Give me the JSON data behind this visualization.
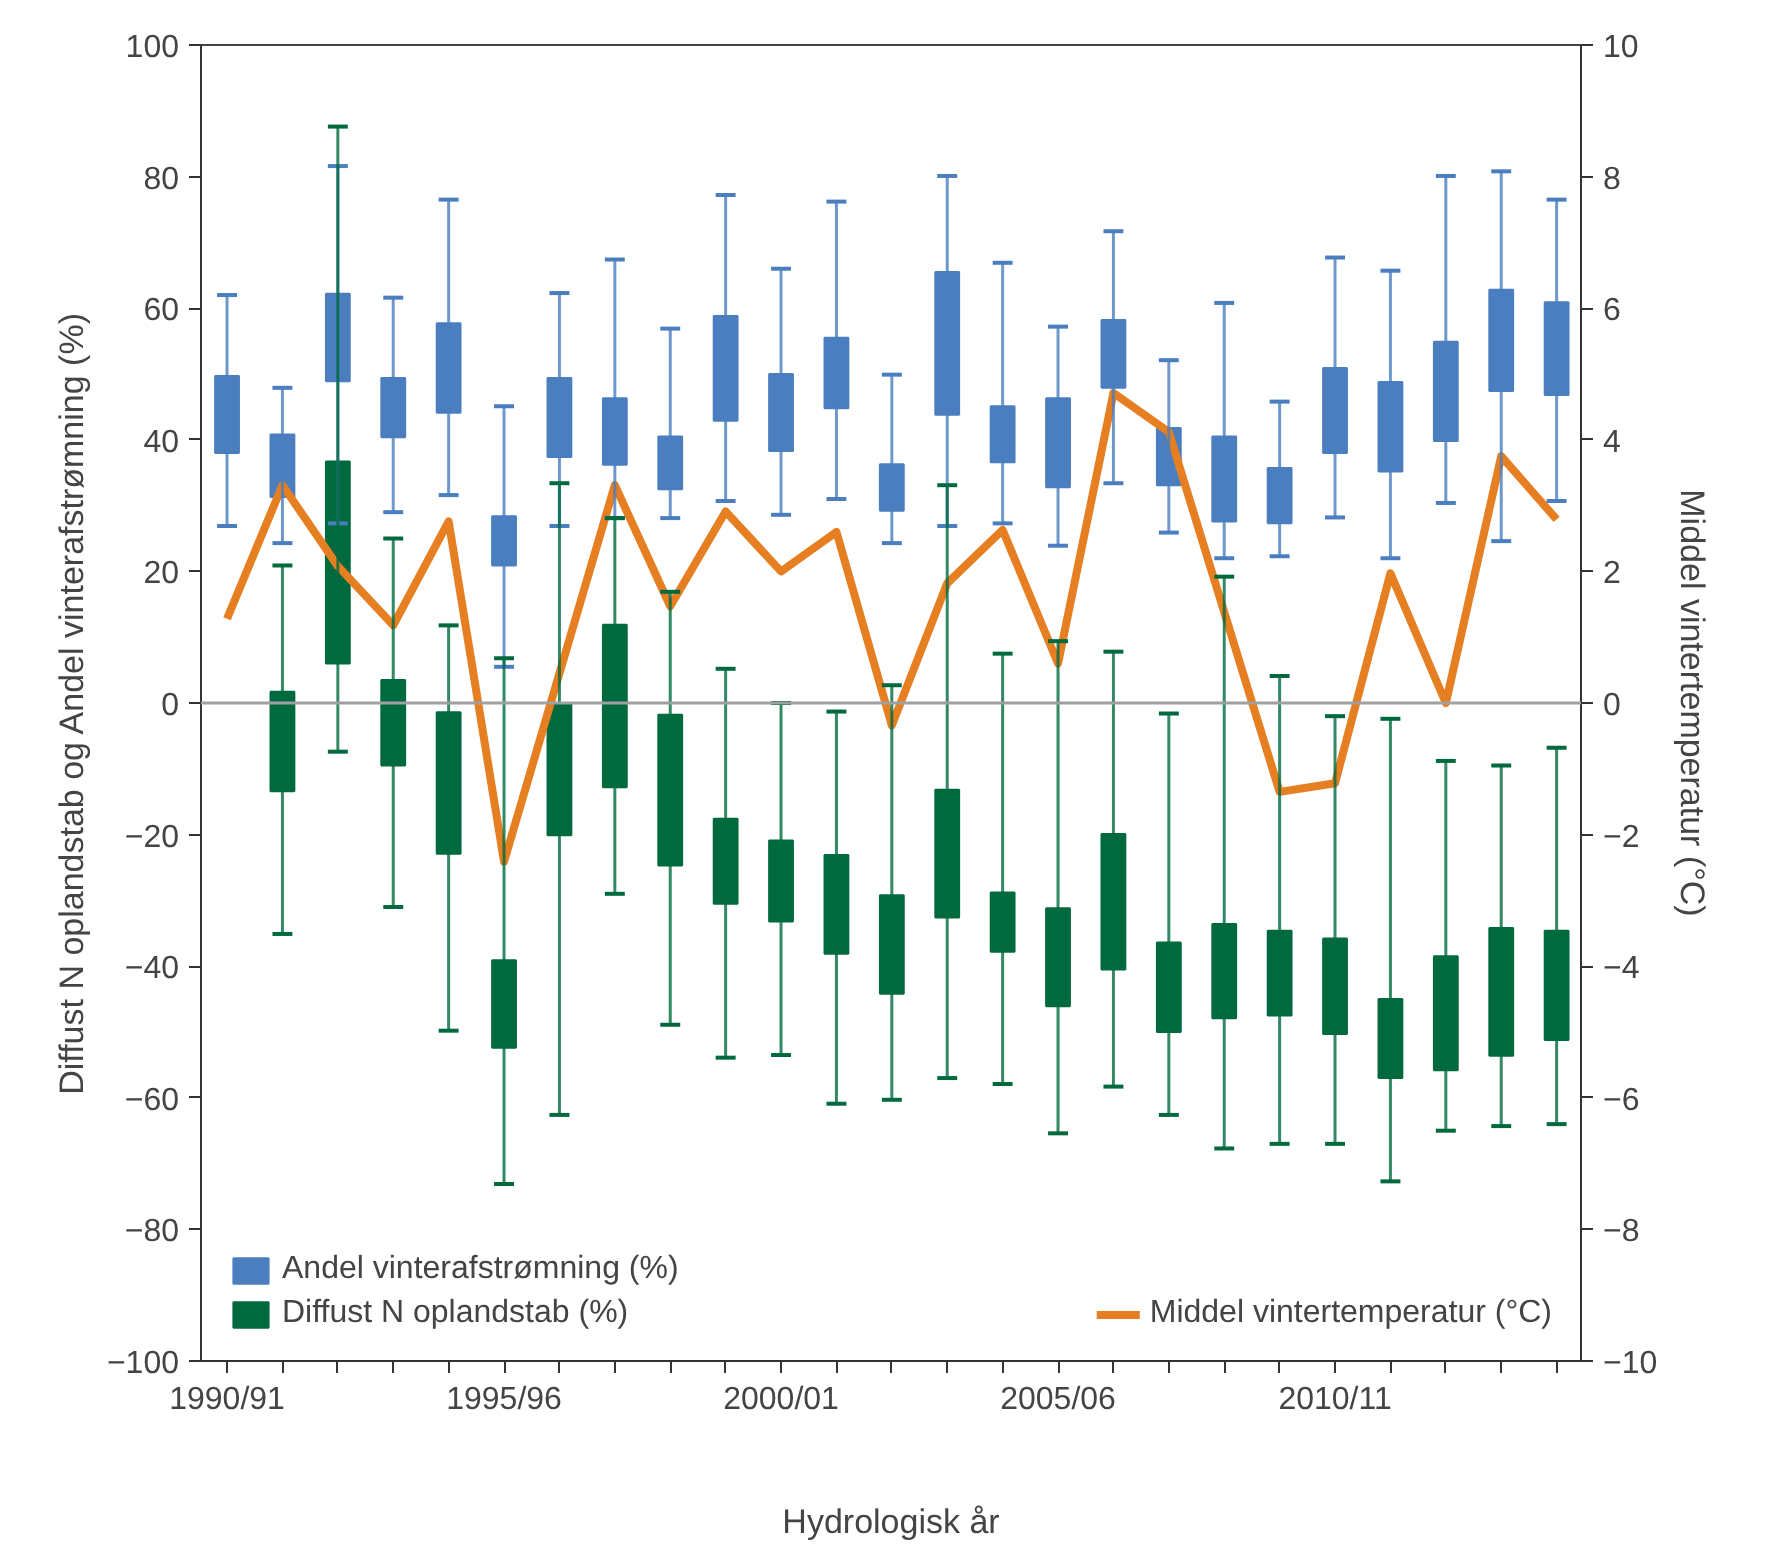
{
  "chart_data": {
    "type": "bar",
    "xlabel": "Hydrologisk år",
    "ylabel": "Diffust N oplandstab og Andel vinterafstrømning (%)",
    "y2label": "Middel vintertemperatur (°C)",
    "categories": [
      "1990/91",
      null,
      null,
      null,
      null,
      "1995/96",
      null,
      null,
      null,
      null,
      "2000/01",
      null,
      null,
      null,
      null,
      "2005/06",
      null,
      null,
      null,
      null,
      "2010/11",
      null,
      null,
      null,
      null
    ],
    "ylim": [
      -100,
      100
    ],
    "yticks": [
      -100,
      -80,
      -60,
      -40,
      -20,
      0,
      20,
      40,
      60,
      80,
      100
    ],
    "y2lim": [
      -10,
      10
    ],
    "y2ticks": [
      -10,
      -8,
      -6,
      -4,
      -2,
      0,
      2,
      4,
      6,
      8,
      10
    ],
    "grid": false,
    "legend": "bottom",
    "ref_lines": [
      {
        "axis": "y",
        "value": 0,
        "color": "#a0a0a0"
      }
    ],
    "series": [
      {
        "name": "Andel vinterafstrømning (%)",
        "color": "#4a7ebf",
        "base": [
          38.0,
          31.3,
          48.9,
          40.4,
          44.1,
          20.9,
          37.4,
          36.2,
          32.5,
          42.9,
          38.3,
          44.8,
          29.2,
          43.8,
          36.6,
          32.8,
          47.9,
          33.1,
          27.6,
          27.3,
          38.0,
          35.2,
          39.8,
          47.4,
          46.8
        ],
        "values": [
          11.7,
          9.5,
          13.3,
          9.0,
          13.6,
          7.5,
          12.0,
          10.1,
          8.0,
          15.9,
          11.7,
          10.7,
          7.1,
          21.7,
          8.5,
          13.5,
          10.3,
          8.7,
          12.9,
          8.4,
          12.9,
          13.6,
          15.1,
          15.4,
          14.1
        ],
        "errors": [
          [
            26.9,
            62.0
          ],
          [
            24.3,
            47.9
          ],
          [
            27.3,
            81.6
          ],
          [
            29.0,
            61.6
          ],
          [
            31.6,
            76.5
          ],
          [
            5.5,
            45.1
          ],
          [
            26.9,
            62.3
          ],
          [
            28.1,
            67.4
          ],
          [
            28.1,
            56.9
          ],
          [
            30.7,
            77.2
          ],
          [
            28.6,
            66.0
          ],
          [
            31.0,
            76.2
          ],
          [
            24.3,
            49.9
          ],
          [
            26.9,
            80.1
          ],
          [
            27.3,
            66.9
          ],
          [
            23.9,
            57.2
          ],
          [
            33.4,
            71.7
          ],
          [
            25.9,
            52.1
          ],
          [
            22.0,
            60.8
          ],
          [
            22.3,
            45.8
          ],
          [
            28.2,
            67.7
          ],
          [
            22.0,
            65.7
          ],
          [
            30.4,
            80.1
          ],
          [
            24.6,
            80.8
          ],
          [
            30.7,
            76.5
          ]
        ]
      },
      {
        "name": "Diffust N oplandstab (%)",
        "color": "#006a3e",
        "base": [
          null,
          -13.4,
          6.0,
          -9.5,
          -22.9,
          -52.4,
          -20.1,
          -12.8,
          -24.7,
          -30.5,
          -33.2,
          -38.1,
          -44.2,
          -32.6,
          -37.8,
          -46.1,
          -40.5,
          -50.0,
          -47.9,
          -47.5,
          -50.3,
          -57.0,
          -55.8,
          -53.6,
          -51.2
        ],
        "values": [
          null,
          15.1,
          30.7,
          13.0,
          21.5,
          13.3,
          20.1,
          24.7,
          22.9,
          12.9,
          12.3,
          15.0,
          15.0,
          19.4,
          9.0,
          14.9,
          20.6,
          13.6,
          14.3,
          12.9,
          14.5,
          12.0,
          17.3,
          19.4,
          16.6
        ],
        "errors": [
          null,
          [
            -35.1,
            20.9
          ],
          [
            -7.4,
            87.6
          ],
          [
            -31.0,
            25.0
          ],
          [
            -49.8,
            11.8
          ],
          [
            -73.1,
            6.8
          ],
          [
            -62.6,
            33.4
          ],
          [
            -29.0,
            28.1
          ],
          [
            -48.9,
            16.9
          ],
          [
            -53.9,
            5.2
          ],
          [
            -53.5,
            0
          ],
          [
            -60.9,
            -1.3
          ],
          [
            -60.3,
            2.7
          ],
          [
            -57.0,
            33.1
          ],
          [
            -57.9,
            7.5
          ],
          [
            -65.4,
            9.4
          ],
          [
            -58.3,
            7.8
          ],
          [
            -62.6,
            -1.6
          ],
          [
            -67.7,
            19.2
          ],
          [
            -67.0,
            4.1
          ],
          [
            -67.0,
            -2.0
          ],
          [
            -72.7,
            -2.4
          ],
          [
            -65.0,
            -8.8
          ],
          [
            -64.3,
            -9.5
          ],
          [
            -64.0,
            -6.8
          ]
        ]
      },
      {
        "name": "Middel vintertemperatur (°C)",
        "type": "line",
        "axis": "y2",
        "color": "#e67e22",
        "values": [
          1.28,
          3.31,
          2.08,
          1.18,
          2.76,
          -2.41,
          0.45,
          3.31,
          1.47,
          2.91,
          2.0,
          2.6,
          -0.34,
          1.82,
          2.63,
          0.6,
          4.71,
          4.12,
          1.38,
          -1.35,
          -1.22,
          1.97,
          0.0,
          3.75,
          2.79
        ]
      }
    ]
  }
}
